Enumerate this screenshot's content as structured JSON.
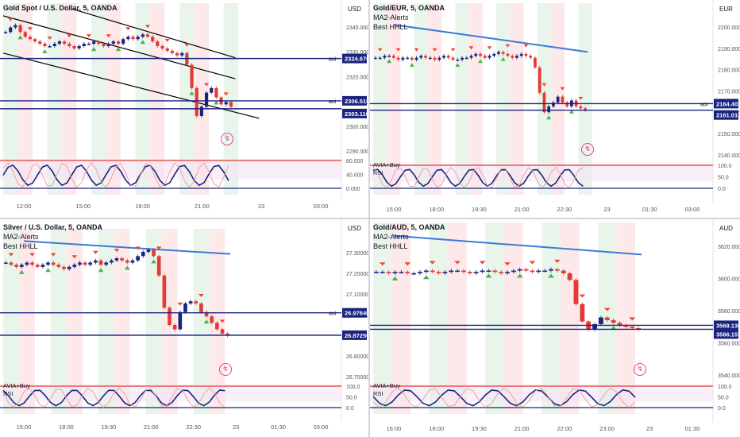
{
  "panels": [
    {
      "id": "gold-usd",
      "title": "Gold Spot / U.S. Dollar, 5, OANDA",
      "legend_lines": [],
      "currency": "USD",
      "price_ticks": [
        "2340.000",
        "2330.000",
        "2320.000",
        "2310.000",
        "2300.000",
        "2290.000"
      ],
      "time_ticks": [
        "12:00",
        "15:00",
        "18:00",
        "21:00",
        "23",
        "03:00"
      ],
      "osc_title": "",
      "osc_ticks": [
        "80.000",
        "40.000",
        "0.000"
      ],
      "aoi_labels": [
        {
          "tag": "aoi",
          "value": "2324.676"
        },
        {
          "tag": "aoi",
          "value": "2306.515"
        },
        {
          "tag": "",
          "value": "2303.110"
        }
      ],
      "price_min": 2285,
      "price_max": 2345,
      "series": [
        2336,
        2338,
        2339,
        2336,
        2334,
        2333,
        2332,
        2331,
        2330,
        2330,
        2331,
        2332,
        2331,
        2330,
        2329,
        2330,
        2331,
        2331,
        2332,
        2331,
        2330,
        2331,
        2332,
        2331,
        2333,
        2334,
        2333,
        2334,
        2335,
        2334,
        2332,
        2330,
        2329,
        2328,
        2327,
        2326,
        2327,
        2322,
        2312,
        2300,
        2304,
        2310,
        2312,
        2308,
        2305,
        2306,
        2304
      ],
      "channel_lines": [
        {
          "x1": 0,
          "y1": 2343,
          "x2": 0.68,
          "y2": 2316
        },
        {
          "x1": 0,
          "y1": 2327,
          "x2": 0.75,
          "y2": 2299
        },
        {
          "x1": 0.2,
          "y1": 2346,
          "x2": 0.68,
          "y2": 2325
        }
      ]
    },
    {
      "id": "gold-eur",
      "title": "Gold/EUR, 5, OANDA",
      "legend_lines": [
        "MA2-Alerts",
        "Best HHLL"
      ],
      "currency": "EUR",
      "price_ticks": [
        "2200.000",
        "2190.000",
        "2180.000",
        "2170.000",
        "2160.000",
        "2150.000",
        "2140.000"
      ],
      "time_ticks": [
        "15:00",
        "18:00",
        "19:30",
        "21:00",
        "22:30",
        "23",
        "01:30",
        "03:00"
      ],
      "osc_title": "AVIA+Buy",
      "osc_sub": "RSI",
      "osc_ticks": [
        "100.0",
        "50.0",
        "0.0"
      ],
      "aoi_labels": [
        {
          "tag": "aoi",
          "value": "2164.403"
        },
        {
          "tag": "",
          "value": "2161.019"
        }
      ],
      "price_min": 2138,
      "price_max": 2212,
      "series": [
        2188,
        2188,
        2189,
        2189,
        2188,
        2187,
        2188,
        2188,
        2187,
        2188,
        2189,
        2188,
        2188,
        2187,
        2188,
        2189,
        2188,
        2187,
        2187,
        2188,
        2188,
        2189,
        2190,
        2189,
        2188,
        2189,
        2190,
        2191,
        2190,
        2189,
        2188,
        2189,
        2190,
        2189,
        2188,
        2183,
        2170,
        2160,
        2163,
        2165,
        2168,
        2165,
        2163,
        2166,
        2163,
        2162,
        2161
      ],
      "ma_line": {
        "from": 2205,
        "to": 2191
      }
    },
    {
      "id": "silver-usd",
      "title": "Silver / U.S. Dollar, 5, OANDA",
      "legend_lines": [
        "MA2-Alerts",
        "Best HHLL"
      ],
      "currency": "USD",
      "price_ticks": [
        "27.30000",
        "27.20000",
        "27.10000",
        "27.00000",
        "26.90000",
        "26.80000",
        "26.70000"
      ],
      "time_ticks": [
        "15:00",
        "18:00",
        "19:30",
        "21:00",
        "22:30",
        "23",
        "01:30",
        "03:00"
      ],
      "osc_title": "AVIA+Buy",
      "osc_sub": "RSI",
      "osc_ticks": [
        "100.0",
        "50.0",
        "0.0"
      ],
      "aoi_labels": [
        {
          "tag": "aoi",
          "value": "26.97646"
        },
        {
          "tag": "",
          "value": "26.87250"
        }
      ],
      "price_min": 26.68,
      "price_max": 27.33,
      "series": [
        27.21,
        27.2,
        27.19,
        27.2,
        27.21,
        27.2,
        27.19,
        27.2,
        27.21,
        27.2,
        27.19,
        27.18,
        27.19,
        27.2,
        27.21,
        27.2,
        27.21,
        27.22,
        27.2,
        27.21,
        27.22,
        27.23,
        27.22,
        27.21,
        27.22,
        27.24,
        27.26,
        27.27,
        27.24,
        27.15,
        27.0,
        26.92,
        26.9,
        26.98,
        27.02,
        27.03,
        27.02,
        26.98,
        26.96,
        26.93,
        26.9,
        26.88,
        26.87
      ],
      "ma_line": {
        "from": 27.31,
        "to": 27.25
      }
    },
    {
      "id": "gold-aud",
      "title": "Gold/AUD, 5, OANDA",
      "legend_lines": [
        "MA2-Alerts",
        "Best HHLL"
      ],
      "currency": "AUD",
      "price_ticks": [
        "3620.000",
        "3600.000",
        "3580.000",
        "3560.000",
        "3540.000"
      ],
      "time_ticks": [
        "16:00",
        "18:00",
        "19:30",
        "21:00",
        "22:00",
        "23:00",
        "23",
        "01:30"
      ],
      "osc_title": "AVIA+Buy",
      "osc_sub": "RSI",
      "osc_ticks": [
        "100.0",
        "50.0",
        "0.0"
      ],
      "aoi_labels": [
        {
          "tag": "",
          "value": "3569.130"
        },
        {
          "tag": "",
          "value": "3566.157"
        }
      ],
      "price_min": 3532,
      "price_max": 3640,
      "series": [
        3609,
        3609,
        3608,
        3609,
        3609,
        3608,
        3608,
        3609,
        3610,
        3609,
        3608,
        3609,
        3610,
        3610,
        3609,
        3608,
        3609,
        3610,
        3610,
        3609,
        3608,
        3609,
        3610,
        3611,
        3610,
        3609,
        3610,
        3610,
        3611,
        3610,
        3608,
        3603,
        3585,
        3572,
        3566,
        3570,
        3575,
        3573,
        3571,
        3569,
        3568,
        3567,
        3566
      ],
      "ma_line": {
        "from": 3636,
        "to": 3622
      }
    }
  ],
  "colors": {
    "bull": "#1a237e",
    "bear": "#e53935",
    "up_arrow": "#4caf50",
    "down_arrow": "#f44336",
    "ma": "#3a7bd5",
    "aoi_line": "#1a237e",
    "label_bg": "#1a237e",
    "zone_red": "#fde3e3",
    "zone_green": "#e3f3e6"
  }
}
